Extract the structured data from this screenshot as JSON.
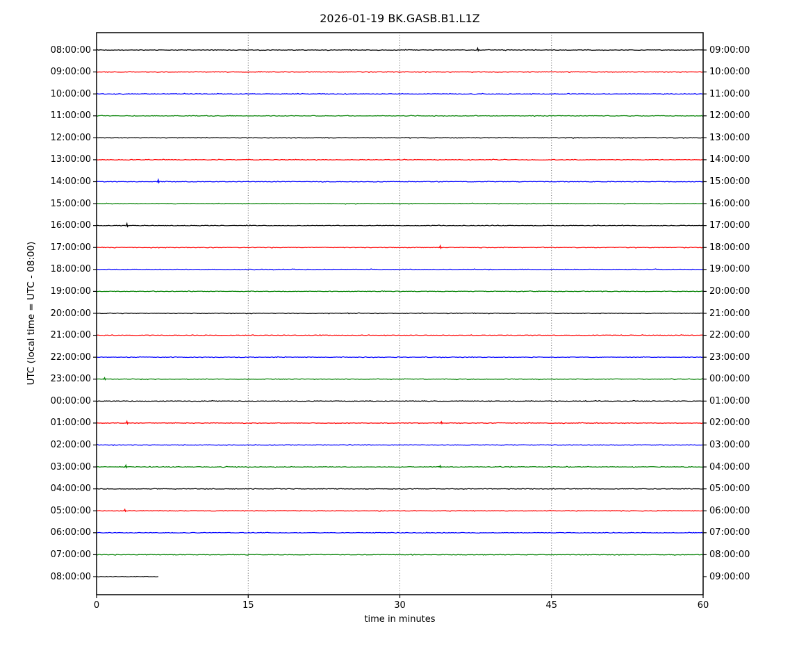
{
  "figure": {
    "title": "2026-01-19 BK.GASB.B1.L1Z",
    "xlabel": "time in minutes",
    "ylabel": "UTC (local time = UTC - 08:00)"
  },
  "chart_data": {
    "type": "line",
    "subtype": "helicorder-dayplot",
    "title": "2026-01-19 BK.GASB.B1.L1Z",
    "xlabel": "time in minutes",
    "ylabel": "UTC (local time = UTC - 08:00)",
    "xlim": [
      0,
      60
    ],
    "x_ticks": [
      0,
      15,
      30,
      45,
      60
    ],
    "grid": {
      "vertical_dotted_at_minutes": [
        15,
        30,
        45
      ],
      "horizontal": false
    },
    "legend": "none",
    "trace_color_cycle": [
      "#000000",
      "#ff0000",
      "#0000ff",
      "#008000"
    ],
    "frame_color": "#000000",
    "rows": [
      {
        "utc_left": "08:00:00",
        "local_right": "09:00:00",
        "color": "#000000",
        "start_min": 0,
        "end_min": 60,
        "spikes": [
          {
            "min": 37.7,
            "amp": 2.6
          }
        ]
      },
      {
        "utc_left": "09:00:00",
        "local_right": "10:00:00",
        "color": "#ff0000",
        "start_min": 0,
        "end_min": 60,
        "spikes": []
      },
      {
        "utc_left": "10:00:00",
        "local_right": "11:00:00",
        "color": "#0000ff",
        "start_min": 0,
        "end_min": 60,
        "spikes": []
      },
      {
        "utc_left": "11:00:00",
        "local_right": "12:00:00",
        "color": "#008000",
        "start_min": 0,
        "end_min": 60,
        "spikes": []
      },
      {
        "utc_left": "12:00:00",
        "local_right": "13:00:00",
        "color": "#000000",
        "start_min": 0,
        "end_min": 60,
        "spikes": []
      },
      {
        "utc_left": "13:00:00",
        "local_right": "14:00:00",
        "color": "#ff0000",
        "start_min": 0,
        "end_min": 60,
        "spikes": []
      },
      {
        "utc_left": "14:00:00",
        "local_right": "15:00:00",
        "color": "#0000ff",
        "start_min": 0,
        "end_min": 60,
        "spikes": [
          {
            "min": 6.1,
            "amp": 3.0
          }
        ]
      },
      {
        "utc_left": "15:00:00",
        "local_right": "16:00:00",
        "color": "#008000",
        "start_min": 0,
        "end_min": 60,
        "spikes": []
      },
      {
        "utc_left": "16:00:00",
        "local_right": "17:00:00",
        "color": "#000000",
        "start_min": 0,
        "end_min": 60,
        "spikes": [
          {
            "min": 3.0,
            "amp": 3.0
          }
        ]
      },
      {
        "utc_left": "17:00:00",
        "local_right": "18:00:00",
        "color": "#ff0000",
        "start_min": 0,
        "end_min": 60,
        "spikes": [
          {
            "min": 34.0,
            "amp": 2.6
          }
        ]
      },
      {
        "utc_left": "18:00:00",
        "local_right": "19:00:00",
        "color": "#0000ff",
        "start_min": 0,
        "end_min": 60,
        "spikes": []
      },
      {
        "utc_left": "19:00:00",
        "local_right": "20:00:00",
        "color": "#008000",
        "start_min": 0,
        "end_min": 60,
        "spikes": []
      },
      {
        "utc_left": "20:00:00",
        "local_right": "21:00:00",
        "color": "#000000",
        "start_min": 0,
        "end_min": 60,
        "spikes": []
      },
      {
        "utc_left": "21:00:00",
        "local_right": "22:00:00",
        "color": "#ff0000",
        "start_min": 0,
        "end_min": 60,
        "spikes": []
      },
      {
        "utc_left": "22:00:00",
        "local_right": "23:00:00",
        "color": "#0000ff",
        "start_min": 0,
        "end_min": 60,
        "spikes": []
      },
      {
        "utc_left": "23:00:00",
        "local_right": "00:00:00",
        "color": "#008000",
        "start_min": 0,
        "end_min": 60,
        "spikes": [
          {
            "min": 0.8,
            "amp": 2.0
          }
        ]
      },
      {
        "utc_left": "00:00:00",
        "local_right": "01:00:00",
        "color": "#000000",
        "start_min": 0,
        "end_min": 60,
        "spikes": []
      },
      {
        "utc_left": "01:00:00",
        "local_right": "02:00:00",
        "color": "#ff0000",
        "start_min": 0,
        "end_min": 60,
        "spikes": [
          {
            "min": 3.0,
            "amp": 2.6
          },
          {
            "min": 34.1,
            "amp": 2.0
          }
        ]
      },
      {
        "utc_left": "02:00:00",
        "local_right": "03:00:00",
        "color": "#0000ff",
        "start_min": 0,
        "end_min": 60,
        "spikes": []
      },
      {
        "utc_left": "03:00:00",
        "local_right": "04:00:00",
        "color": "#008000",
        "start_min": 0,
        "end_min": 60,
        "spikes": [
          {
            "min": 2.9,
            "amp": 2.6
          },
          {
            "min": 34.0,
            "amp": 2.0
          }
        ]
      },
      {
        "utc_left": "04:00:00",
        "local_right": "05:00:00",
        "color": "#000000",
        "start_min": 0,
        "end_min": 60,
        "spikes": []
      },
      {
        "utc_left": "05:00:00",
        "local_right": "06:00:00",
        "color": "#ff0000",
        "start_min": 0,
        "end_min": 60,
        "spikes": [
          {
            "min": 2.8,
            "amp": 2.0
          }
        ]
      },
      {
        "utc_left": "06:00:00",
        "local_right": "07:00:00",
        "color": "#0000ff",
        "start_min": 0,
        "end_min": 60,
        "spikes": []
      },
      {
        "utc_left": "07:00:00",
        "local_right": "08:00:00",
        "color": "#008000",
        "start_min": 0,
        "end_min": 60,
        "spikes": []
      },
      {
        "utc_left": "08:00:00",
        "local_right": "09:00:00",
        "color": "#000000",
        "start_min": 0,
        "end_min": 6.1,
        "spikes": []
      }
    ]
  }
}
